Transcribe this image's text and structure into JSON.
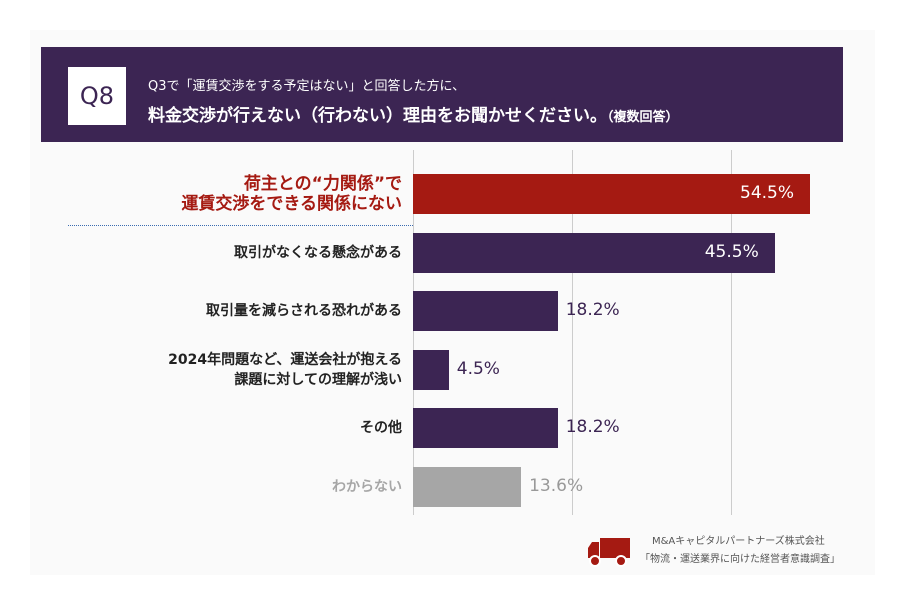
{
  "header": {
    "badge": "Q8",
    "line1": "Q3で「運賃交渉をする予定はない」と回答した方に、",
    "line2": "料金交渉が行えない（行わない）理由をお聞かせください。",
    "line2_note": "（複数回答）"
  },
  "chart_data": {
    "type": "bar",
    "orientation": "horizontal",
    "categories": [
      "荷主との“力関係”で\n運賃交渉をできる関係にない",
      "取引がなくなる懸念がある",
      "取引量を減らされる恐れがある",
      "2024年問題など、運送会社が抱える\n課題に対しての理解が浅い",
      "その他",
      "わからない"
    ],
    "values": [
      54.5,
      45.5,
      18.2,
      4.5,
      18.2,
      13.6
    ],
    "value_labels": [
      "54.5%",
      "45.5%",
      "18.2%",
      "4.5%",
      "18.2%",
      "13.6%"
    ],
    "colors": [
      "#a51a12",
      "#3c2553",
      "#3c2553",
      "#3c2553",
      "#3c2553",
      "#a6a6a6"
    ],
    "gridlines": [
      0,
      20,
      40
    ],
    "unit": "%"
  },
  "source": {
    "company": "M&Aキャピタルパートナーズ株式会社",
    "survey": "「物流・運送業界に向けた経営者意識調査」",
    "icon": "truck-icon",
    "accent": "#a51a12"
  }
}
